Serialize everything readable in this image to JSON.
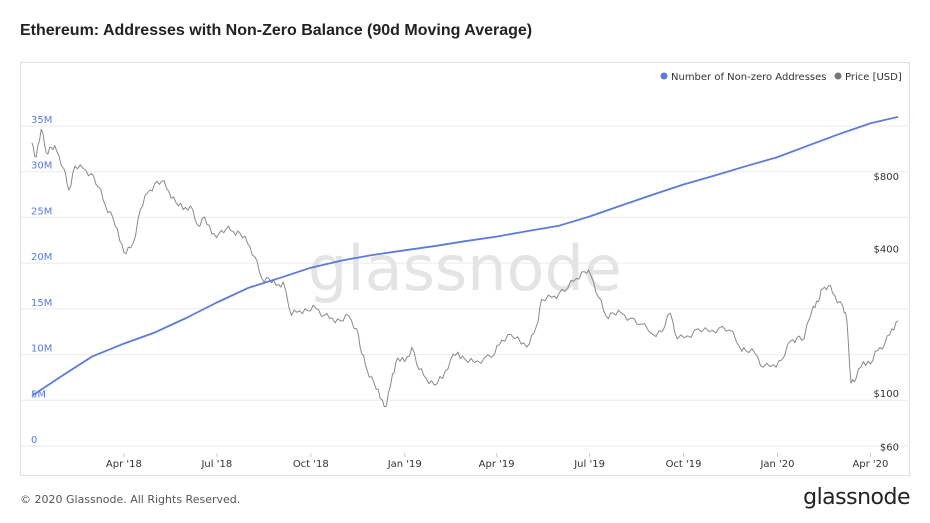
{
  "header": {
    "title": "Ethereum: Addresses with Non-Zero Balance (90d Moving Average)"
  },
  "footer": {
    "copyright": "© 2020 Glassnode. All Rights Reserved.",
    "logo": "glassnode"
  },
  "watermark": "glassnode",
  "colors": {
    "addresses": "#5b7bdc",
    "price": "#8a8a8a",
    "grid": "#ebebeb",
    "left_axis_text": "#5b7bdc",
    "right_axis_text": "#333333"
  },
  "chart_data": {
    "type": "line",
    "title": "Ethereum: Addresses with Non-Zero Balance (90d Moving Average)",
    "xlabel": "",
    "x_ticks": [
      "Apr '18",
      "Jul '18",
      "Oct '18",
      "Jan '19",
      "Apr '19",
      "Jul '19",
      "Oct '19",
      "Jan '20",
      "Apr '20"
    ],
    "x_range": [
      "2018-01-01",
      "2020-04-28"
    ],
    "legend": {
      "position": "top-right",
      "items": [
        "Number of Non-zero Addresses",
        "Price [USD]"
      ]
    },
    "y_left": {
      "ticks": [
        "0",
        "5M",
        "10M",
        "15M",
        "20M",
        "25M",
        "30M",
        "35M"
      ],
      "ylim": [
        0,
        35000000
      ]
    },
    "y_right": {
      "scale": "log",
      "ticks": [
        "$60",
        "$100",
        "$400",
        "$800"
      ],
      "ylim": [
        60,
        1600
      ]
    },
    "series": [
      {
        "name": "Number of Non-zero Addresses",
        "axis": "left",
        "x": [
          "2018-01-01",
          "2018-02-01",
          "2018-03-01",
          "2018-04-01",
          "2018-05-01",
          "2018-06-01",
          "2018-07-01",
          "2018-08-01",
          "2018-09-01",
          "2018-10-01",
          "2018-11-01",
          "2018-12-01",
          "2019-01-01",
          "2019-02-01",
          "2019-03-01",
          "2019-04-01",
          "2019-05-01",
          "2019-06-01",
          "2019-07-01",
          "2019-08-01",
          "2019-09-01",
          "2019-10-01",
          "2019-11-01",
          "2019-12-01",
          "2020-01-01",
          "2020-02-01",
          "2020-03-01",
          "2020-04-01",
          "2020-04-28"
        ],
        "values": [
          5500000,
          7800000,
          9800000,
          11200000,
          12400000,
          14000000,
          15700000,
          17300000,
          18400000,
          19500000,
          20300000,
          20900000,
          21400000,
          21900000,
          22400000,
          22900000,
          23500000,
          24100000,
          25100000,
          26300000,
          27500000,
          28600000,
          29600000,
          30600000,
          31600000,
          32900000,
          34100000,
          35300000,
          36000000
        ]
      },
      {
        "name": "Price [USD]",
        "axis": "right",
        "x": [
          "2018-01-01",
          "2018-01-05",
          "2018-01-10",
          "2018-01-15",
          "2018-01-20",
          "2018-01-25",
          "2018-02-01",
          "2018-02-06",
          "2018-02-12",
          "2018-02-20",
          "2018-02-28",
          "2018-03-07",
          "2018-03-14",
          "2018-03-21",
          "2018-03-28",
          "2018-04-03",
          "2018-04-10",
          "2018-04-17",
          "2018-04-24",
          "2018-05-01",
          "2018-05-08",
          "2018-05-15",
          "2018-05-22",
          "2018-05-29",
          "2018-06-05",
          "2018-06-12",
          "2018-06-19",
          "2018-06-26",
          "2018-07-03",
          "2018-07-10",
          "2018-07-17",
          "2018-07-24",
          "2018-07-31",
          "2018-08-07",
          "2018-08-14",
          "2018-08-21",
          "2018-08-28",
          "2018-09-04",
          "2018-09-12",
          "2018-09-20",
          "2018-09-28",
          "2018-10-06",
          "2018-10-14",
          "2018-10-22",
          "2018-10-30",
          "2018-11-07",
          "2018-11-15",
          "2018-11-20",
          "2018-11-25",
          "2018-12-02",
          "2018-12-08",
          "2018-12-14",
          "2018-12-20",
          "2018-12-25",
          "2019-01-01",
          "2019-01-08",
          "2019-01-15",
          "2019-01-22",
          "2019-01-30",
          "2019-02-07",
          "2019-02-15",
          "2019-02-22",
          "2019-03-01",
          "2019-03-10",
          "2019-03-20",
          "2019-03-30",
          "2019-04-06",
          "2019-04-15",
          "2019-04-25",
          "2019-05-03",
          "2019-05-10",
          "2019-05-15",
          "2019-05-25",
          "2019-06-01",
          "2019-06-10",
          "2019-06-18",
          "2019-06-26",
          "2019-07-02",
          "2019-07-10",
          "2019-07-17",
          "2019-07-24",
          "2019-08-01",
          "2019-08-10",
          "2019-08-20",
          "2019-09-01",
          "2019-09-10",
          "2019-09-18",
          "2019-09-25",
          "2019-10-05",
          "2019-10-15",
          "2019-10-26",
          "2019-11-05",
          "2019-11-15",
          "2019-11-25",
          "2019-12-01",
          "2019-12-10",
          "2019-12-18",
          "2019-12-28",
          "2020-01-05",
          "2020-01-14",
          "2020-01-20",
          "2020-01-27",
          "2020-02-05",
          "2020-02-10",
          "2020-02-14",
          "2020-02-20",
          "2020-02-26",
          "2020-03-05",
          "2020-03-09",
          "2020-03-13",
          "2020-03-18",
          "2020-03-25",
          "2020-04-01",
          "2020-04-08",
          "2020-04-15",
          "2020-04-22",
          "2020-04-28"
        ],
        "values": [
          1100,
          960,
          1250,
          1000,
          1050,
          1020,
          860,
          700,
          880,
          860,
          820,
          720,
          600,
          540,
          430,
          380,
          420,
          580,
          680,
          740,
          760,
          690,
          620,
          580,
          600,
          500,
          540,
          460,
          460,
          480,
          470,
          460,
          420,
          370,
          300,
          300,
          280,
          290,
          210,
          220,
          220,
          225,
          210,
          205,
          200,
          210,
          185,
          145,
          125,
          110,
          95,
          88,
          120,
          140,
          135,
          155,
          125,
          115,
          108,
          115,
          138,
          148,
          138,
          134,
          140,
          145,
          166,
          175,
          160,
          160,
          190,
          245,
          250,
          260,
          275,
          300,
          320,
          310,
          250,
          210,
          215,
          215,
          205,
          193,
          175,
          180,
          215,
          168,
          173,
          185,
          180,
          187,
          183,
          155,
          150,
          146,
          128,
          131,
          137,
          165,
          170,
          168,
          230,
          240,
          270,
          280,
          255,
          230,
          200,
          110,
          115,
          135,
          132,
          150,
          160,
          185,
          200
        ]
      }
    ]
  }
}
